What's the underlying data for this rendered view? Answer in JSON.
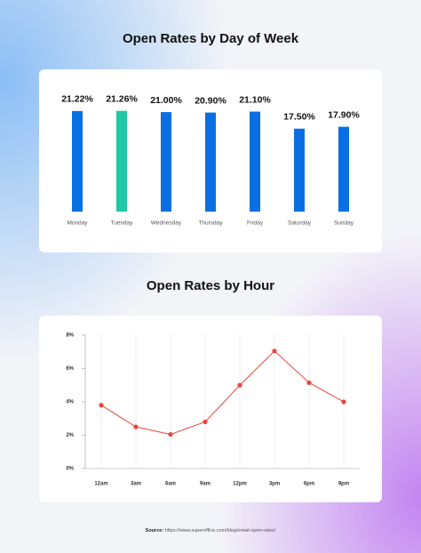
{
  "chart_data": [
    {
      "type": "bar",
      "title": "Open Rates by Day of Week",
      "categories": [
        "Monday",
        "Tuesday",
        "Wednesday",
        "Thursday",
        "Friday",
        "Saturday",
        "Sunday"
      ],
      "values": [
        21.22,
        21.26,
        21.0,
        20.9,
        21.1,
        17.5,
        17.9
      ],
      "value_labels": [
        "21.22%",
        "21.26%",
        "21.00%",
        "20.90%",
        "21.10%",
        "17.50%",
        "17.90%"
      ],
      "colors": [
        "#0a6fe3",
        "#1ec9a3",
        "#0a6fe3",
        "#0a6fe3",
        "#0a6fe3",
        "#0a6fe3",
        "#0a6fe3"
      ]
    },
    {
      "type": "line",
      "title": "Open Rates by Hour",
      "categories": [
        "12am",
        "3am",
        "6am",
        "9am",
        "12pm",
        "3pm",
        "6pm",
        "9pm"
      ],
      "values": [
        3.8,
        2.5,
        2.05,
        2.8,
        5.0,
        7.05,
        5.15,
        4.0
      ],
      "color": "#e8453c",
      "ylim": [
        0,
        8
      ],
      "yticks": [
        {
          "value": 0,
          "label": "0%"
        },
        {
          "value": 2,
          "label": "2%"
        },
        {
          "value": 4,
          "label": "4%"
        },
        {
          "value": 6,
          "label": "6%"
        },
        {
          "value": 8,
          "label": "8%"
        }
      ],
      "grid": true
    }
  ],
  "source": {
    "label": "Source:",
    "text": "https://www.superoffice.com/blog/email-open-rates/"
  }
}
